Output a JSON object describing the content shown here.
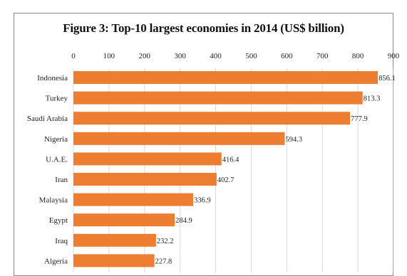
{
  "chart_data": {
    "type": "bar",
    "orientation": "horizontal",
    "title": "Figure 3: Top-10 largest economies in 2014 (US$ billion)",
    "categories": [
      "Indonesia",
      "Turkey",
      "Saudi Arabia",
      "Nigeria",
      "U.A.E.",
      "Iran",
      "Malaysia",
      "Egypt",
      "Iraq",
      "Algeria"
    ],
    "values": [
      856.1,
      813.3,
      777.9,
      594.3,
      416.4,
      402.7,
      336.9,
      284.9,
      232.2,
      227.8
    ],
    "value_labels": [
      "856.1",
      "813.3",
      "777.9",
      "594.3",
      "416.4",
      "402.7",
      "336.9",
      "284.9",
      "232.2",
      "227.8"
    ],
    "xticks": [
      "0",
      "100",
      "200",
      "300",
      "400",
      "500",
      "600",
      "700",
      "800",
      "900"
    ],
    "xlim": [
      0,
      900
    ],
    "xaxis_position": "top",
    "grid": true,
    "legend": "none",
    "bar_color": "#ED7D31"
  }
}
